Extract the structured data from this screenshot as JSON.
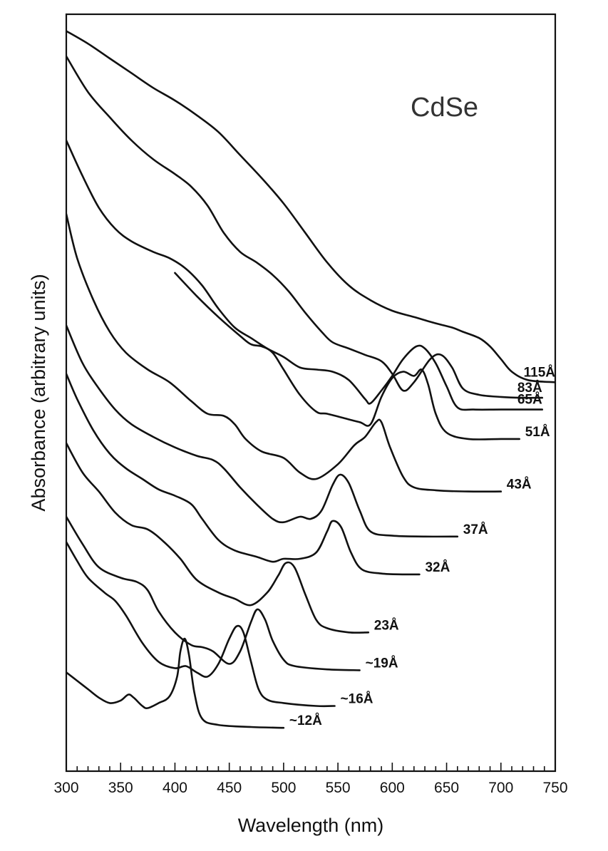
{
  "chart_data": {
    "type": "line",
    "title": "",
    "annotation": "CdSe",
    "xlabel": "Wavelength (nm)",
    "ylabel": "Absorbance (arbitrary units)",
    "xlim": [
      300,
      750
    ],
    "x_ticks": [
      "300",
      "350",
      "400",
      "450",
      "500",
      "550",
      "600",
      "650",
      "700",
      "750"
    ],
    "y_scale": "arbitrary units (spectra vertically offset)",
    "grid": false,
    "legend": "none (curves labeled at right end)",
    "series": [
      {
        "name": "~12Å",
        "points": [
          [
            300,
            2.35
          ],
          [
            310,
            2.15
          ],
          [
            320,
            1.95
          ],
          [
            330,
            1.75
          ],
          [
            340,
            1.62
          ],
          [
            350,
            1.68
          ],
          [
            357,
            1.82
          ],
          [
            362,
            1.75
          ],
          [
            370,
            1.55
          ],
          [
            375,
            1.5
          ],
          [
            385,
            1.62
          ],
          [
            395,
            1.78
          ],
          [
            402,
            2.25
          ],
          [
            405,
            2.85
          ],
          [
            409,
            3.15
          ],
          [
            413,
            2.75
          ],
          [
            418,
            1.85
          ],
          [
            425,
            1.25
          ],
          [
            440,
            1.1
          ],
          [
            470,
            1.05
          ],
          [
            500,
            1.03
          ]
        ]
      },
      {
        "name": "~16Å",
        "points": [
          [
            300,
            5.45
          ],
          [
            310,
            5.0
          ],
          [
            320,
            4.6
          ],
          [
            335,
            4.25
          ],
          [
            345,
            4.05
          ],
          [
            355,
            3.7
          ],
          [
            370,
            3.05
          ],
          [
            385,
            2.6
          ],
          [
            400,
            2.45
          ],
          [
            410,
            2.5
          ],
          [
            420,
            2.35
          ],
          [
            430,
            2.25
          ],
          [
            440,
            2.55
          ],
          [
            450,
            3.15
          ],
          [
            457,
            3.45
          ],
          [
            463,
            3.3
          ],
          [
            470,
            2.6
          ],
          [
            477,
            1.95
          ],
          [
            485,
            1.7
          ],
          [
            500,
            1.62
          ],
          [
            530,
            1.55
          ],
          [
            547,
            1.55
          ]
        ]
      },
      {
        "name": "~19Å",
        "points": [
          [
            300,
            6.05
          ],
          [
            315,
            5.4
          ],
          [
            330,
            4.85
          ],
          [
            350,
            4.6
          ],
          [
            365,
            4.5
          ],
          [
            375,
            4.3
          ],
          [
            385,
            3.8
          ],
          [
            400,
            3.3
          ],
          [
            415,
            3.0
          ],
          [
            425,
            2.95
          ],
          [
            435,
            2.85
          ],
          [
            450,
            2.55
          ],
          [
            460,
            2.85
          ],
          [
            470,
            3.55
          ],
          [
            476,
            3.85
          ],
          [
            483,
            3.6
          ],
          [
            490,
            3.1
          ],
          [
            500,
            2.65
          ],
          [
            510,
            2.5
          ],
          [
            540,
            2.42
          ],
          [
            570,
            2.4
          ]
        ]
      },
      {
        "name": "23Å",
        "points": [
          [
            300,
            7.8
          ],
          [
            315,
            7.1
          ],
          [
            330,
            6.65
          ],
          [
            345,
            6.15
          ],
          [
            360,
            5.85
          ],
          [
            375,
            5.75
          ],
          [
            390,
            5.45
          ],
          [
            405,
            5.05
          ],
          [
            420,
            4.55
          ],
          [
            440,
            4.25
          ],
          [
            455,
            4.1
          ],
          [
            470,
            3.95
          ],
          [
            485,
            4.25
          ],
          [
            495,
            4.65
          ],
          [
            502,
            4.95
          ],
          [
            510,
            4.85
          ],
          [
            520,
            4.2
          ],
          [
            530,
            3.6
          ],
          [
            540,
            3.4
          ],
          [
            560,
            3.3
          ],
          [
            578,
            3.3
          ]
        ]
      },
      {
        "name": "32Å",
        "points": [
          [
            300,
            9.45
          ],
          [
            310,
            8.85
          ],
          [
            325,
            8.1
          ],
          [
            340,
            7.55
          ],
          [
            355,
            7.2
          ],
          [
            370,
            6.95
          ],
          [
            385,
            6.7
          ],
          [
            400,
            6.55
          ],
          [
            415,
            6.35
          ],
          [
            425,
            6.0
          ],
          [
            440,
            5.5
          ],
          [
            455,
            5.25
          ],
          [
            475,
            5.1
          ],
          [
            490,
            4.98
          ],
          [
            500,
            5.05
          ],
          [
            515,
            5.05
          ],
          [
            530,
            5.2
          ],
          [
            540,
            5.7
          ],
          [
            545,
            5.95
          ],
          [
            553,
            5.8
          ],
          [
            562,
            5.2
          ],
          [
            572,
            4.8
          ],
          [
            590,
            4.7
          ],
          [
            610,
            4.68
          ],
          [
            625,
            4.68
          ]
        ]
      },
      {
        "name": "37Å",
        "points": [
          [
            300,
            10.6
          ],
          [
            315,
            9.7
          ],
          [
            330,
            9.1
          ],
          [
            345,
            8.6
          ],
          [
            360,
            8.25
          ],
          [
            380,
            7.95
          ],
          [
            400,
            7.7
          ],
          [
            420,
            7.5
          ],
          [
            435,
            7.4
          ],
          [
            445,
            7.2
          ],
          [
            460,
            6.75
          ],
          [
            475,
            6.35
          ],
          [
            490,
            6.0
          ],
          [
            500,
            5.92
          ],
          [
            515,
            6.05
          ],
          [
            525,
            6.0
          ],
          [
            535,
            6.2
          ],
          [
            545,
            6.8
          ],
          [
            552,
            7.05
          ],
          [
            560,
            6.85
          ],
          [
            570,
            6.2
          ],
          [
            580,
            5.7
          ],
          [
            600,
            5.6
          ],
          [
            630,
            5.58
          ],
          [
            660,
            5.58
          ]
        ]
      },
      {
        "name": "43Å",
        "points": [
          [
            300,
            13.25
          ],
          [
            310,
            12.2
          ],
          [
            325,
            11.2
          ],
          [
            340,
            10.45
          ],
          [
            355,
            9.95
          ],
          [
            375,
            9.55
          ],
          [
            395,
            9.25
          ],
          [
            415,
            8.8
          ],
          [
            430,
            8.5
          ],
          [
            445,
            8.45
          ],
          [
            455,
            8.25
          ],
          [
            465,
            7.9
          ],
          [
            480,
            7.6
          ],
          [
            500,
            7.45
          ],
          [
            515,
            7.1
          ],
          [
            530,
            6.95
          ],
          [
            550,
            7.3
          ],
          [
            565,
            7.75
          ],
          [
            575,
            7.95
          ],
          [
            585,
            8.3
          ],
          [
            590,
            8.3
          ],
          [
            598,
            7.7
          ],
          [
            610,
            7.0
          ],
          [
            620,
            6.75
          ],
          [
            640,
            6.68
          ],
          [
            670,
            6.65
          ],
          [
            700,
            6.65
          ]
        ]
      },
      {
        "name": "51Å",
        "points": [
          [
            400,
            11.85
          ],
          [
            420,
            11.3
          ],
          [
            440,
            10.8
          ],
          [
            460,
            10.35
          ],
          [
            470,
            10.15
          ],
          [
            480,
            10.1
          ],
          [
            490,
            9.95
          ],
          [
            500,
            9.55
          ],
          [
            515,
            8.95
          ],
          [
            530,
            8.55
          ],
          [
            540,
            8.5
          ],
          [
            555,
            8.4
          ],
          [
            570,
            8.3
          ],
          [
            580,
            8.25
          ],
          [
            590,
            8.9
          ],
          [
            600,
            9.35
          ],
          [
            610,
            9.5
          ],
          [
            620,
            9.4
          ],
          [
            627,
            9.55
          ],
          [
            633,
            9.2
          ],
          [
            640,
            8.5
          ],
          [
            650,
            8.05
          ],
          [
            670,
            7.9
          ],
          [
            700,
            7.9
          ],
          [
            717,
            7.9
          ]
        ]
      },
      {
        "name": "65Å",
        "points": [
          [
            300,
            15.0
          ],
          [
            315,
            14.15
          ],
          [
            330,
            13.4
          ],
          [
            345,
            12.9
          ],
          [
            360,
            12.6
          ],
          [
            380,
            12.35
          ],
          [
            395,
            12.2
          ],
          [
            410,
            11.95
          ],
          [
            425,
            11.55
          ],
          [
            440,
            11.0
          ],
          [
            455,
            10.55
          ],
          [
            470,
            10.3
          ],
          [
            485,
            10.05
          ],
          [
            500,
            9.85
          ],
          [
            515,
            9.6
          ],
          [
            530,
            9.55
          ],
          [
            545,
            9.5
          ],
          [
            560,
            9.3
          ],
          [
            575,
            8.85
          ],
          [
            580,
            8.75
          ],
          [
            590,
            9.05
          ],
          [
            600,
            9.4
          ],
          [
            610,
            9.8
          ],
          [
            622,
            10.1
          ],
          [
            630,
            10.05
          ],
          [
            640,
            9.7
          ],
          [
            650,
            9.15
          ],
          [
            660,
            8.65
          ],
          [
            675,
            8.6
          ],
          [
            700,
            8.6
          ],
          [
            738,
            8.6
          ]
        ]
      },
      {
        "name": "83Å",
        "points": [
          [
            300,
            17.0
          ],
          [
            320,
            16.15
          ],
          [
            340,
            15.55
          ],
          [
            360,
            15.0
          ],
          [
            380,
            14.55
          ],
          [
            400,
            14.2
          ],
          [
            415,
            13.9
          ],
          [
            430,
            13.45
          ],
          [
            445,
            12.8
          ],
          [
            460,
            12.35
          ],
          [
            475,
            12.1
          ],
          [
            490,
            11.8
          ],
          [
            505,
            11.4
          ],
          [
            520,
            10.9
          ],
          [
            535,
            10.45
          ],
          [
            545,
            10.2
          ],
          [
            560,
            10.05
          ],
          [
            575,
            9.9
          ],
          [
            590,
            9.75
          ],
          [
            600,
            9.45
          ],
          [
            610,
            9.05
          ],
          [
            620,
            9.25
          ],
          [
            635,
            9.8
          ],
          [
            645,
            9.9
          ],
          [
            655,
            9.6
          ],
          [
            665,
            9.1
          ],
          [
            680,
            8.95
          ],
          [
            700,
            8.9
          ],
          [
            720,
            8.88
          ],
          [
            738,
            8.88
          ]
        ]
      },
      {
        "name": "115Å",
        "points": [
          [
            300,
            17.6
          ],
          [
            320,
            17.3
          ],
          [
            340,
            16.95
          ],
          [
            360,
            16.6
          ],
          [
            380,
            16.25
          ],
          [
            400,
            15.95
          ],
          [
            420,
            15.6
          ],
          [
            440,
            15.2
          ],
          [
            460,
            14.65
          ],
          [
            480,
            14.1
          ],
          [
            500,
            13.5
          ],
          [
            520,
            12.8
          ],
          [
            540,
            12.1
          ],
          [
            560,
            11.55
          ],
          [
            580,
            11.2
          ],
          [
            600,
            10.95
          ],
          [
            620,
            10.8
          ],
          [
            640,
            10.65
          ],
          [
            655,
            10.55
          ],
          [
            665,
            10.45
          ],
          [
            680,
            10.3
          ],
          [
            690,
            10.1
          ],
          [
            700,
            9.8
          ],
          [
            710,
            9.5
          ],
          [
            725,
            9.3
          ],
          [
            750,
            9.25
          ]
        ]
      }
    ]
  }
}
